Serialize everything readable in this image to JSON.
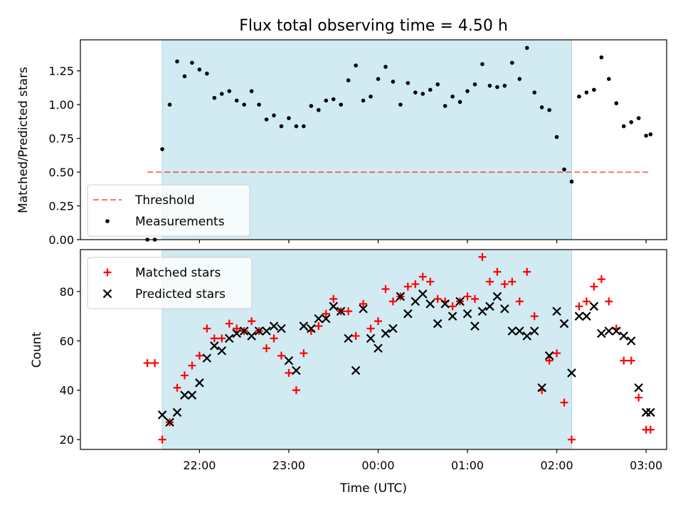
{
  "title": "Flux total observing time = 4.50 h",
  "xlabel": "Time (UTC)",
  "colors": {
    "shade": "#add8e6",
    "threshold": "#ff0000",
    "matched": "#ff0000",
    "predicted": "#000000",
    "measurement": "#000000"
  },
  "chart_data": [
    {
      "type": "scatter",
      "panel": "top",
      "ylabel": "Matched/Predicted stars",
      "ylim": [
        0,
        1.48
      ],
      "yticks": [
        "0.00",
        "0.25",
        "0.50",
        "0.75",
        "1.00",
        "1.25"
      ],
      "yticks_values": [
        0,
        0.25,
        0.5,
        0.75,
        1.0,
        1.25
      ],
      "shaded_interval": [
        "21:35",
        "02:10"
      ],
      "threshold": {
        "name": "Threshold",
        "y": 0.5,
        "x_range": [
          "21:25",
          "03:03"
        ]
      },
      "legend": {
        "position": "lower-left",
        "entries": [
          "Threshold",
          "Measurements"
        ]
      },
      "series": [
        {
          "name": "Measurements",
          "x": [
            "21:25",
            "21:30",
            "21:35",
            "21:40",
            "21:45",
            "21:50",
            "21:55",
            "22:00",
            "22:05",
            "22:10",
            "22:15",
            "22:20",
            "22:25",
            "22:30",
            "22:35",
            "22:40",
            "22:45",
            "22:50",
            "22:55",
            "23:00",
            "23:05",
            "23:10",
            "23:15",
            "23:20",
            "23:25",
            "23:30",
            "23:35",
            "23:40",
            "23:45",
            "23:50",
            "23:55",
            "00:00",
            "00:05",
            "00:10",
            "00:15",
            "00:20",
            "00:25",
            "00:30",
            "00:35",
            "00:40",
            "00:45",
            "00:50",
            "00:55",
            "01:00",
            "01:05",
            "01:10",
            "01:15",
            "01:20",
            "01:25",
            "01:30",
            "01:35",
            "01:40",
            "01:45",
            "01:50",
            "01:55",
            "02:00",
            "02:05",
            "02:10",
            "02:15",
            "02:20",
            "02:25",
            "02:30",
            "02:35",
            "02:40",
            "02:45",
            "02:50",
            "02:55",
            "03:00",
            "03:03"
          ],
          "y": [
            0.0,
            0.0,
            0.67,
            1.0,
            1.32,
            1.21,
            1.31,
            1.26,
            1.23,
            1.05,
            1.08,
            1.1,
            1.03,
            1.0,
            1.1,
            1.0,
            0.89,
            0.92,
            0.84,
            0.9,
            0.84,
            0.84,
            0.99,
            0.96,
            1.03,
            1.04,
            1.0,
            1.18,
            1.29,
            1.03,
            1.06,
            1.19,
            1.28,
            1.17,
            1.0,
            1.16,
            1.09,
            1.08,
            1.11,
            1.15,
            0.99,
            1.06,
            1.02,
            1.1,
            1.15,
            1.3,
            1.14,
            1.13,
            1.14,
            1.31,
            1.19,
            1.42,
            1.09,
            0.98,
            0.96,
            0.76,
            0.52,
            0.43,
            1.06,
            1.09,
            1.11,
            1.35,
            1.19,
            1.01,
            0.84,
            0.87,
            0.9,
            0.77,
            0.78
          ]
        }
      ]
    },
    {
      "type": "scatter",
      "panel": "bottom",
      "ylabel": "Count",
      "ylim": [
        16,
        97
      ],
      "yticks": [
        "20",
        "40",
        "60",
        "80"
      ],
      "yticks_values": [
        20,
        40,
        60,
        80
      ],
      "xticks": [
        "22:00",
        "23:00",
        "00:00",
        "01:00",
        "02:00",
        "03:00"
      ],
      "shaded_interval": [
        "21:35",
        "02:10"
      ],
      "legend": {
        "position": "upper-left",
        "entries": [
          "Matched stars",
          "Predicted stars"
        ]
      },
      "series": [
        {
          "name": "Matched stars",
          "marker": "plus",
          "x": [
            "21:25",
            "21:30",
            "21:35",
            "21:40",
            "21:45",
            "21:50",
            "21:55",
            "22:00",
            "22:05",
            "22:10",
            "22:15",
            "22:20",
            "22:25",
            "22:30",
            "22:35",
            "22:40",
            "22:45",
            "22:50",
            "22:55",
            "23:00",
            "23:05",
            "23:10",
            "23:15",
            "23:20",
            "23:25",
            "23:30",
            "23:35",
            "23:40",
            "23:45",
            "23:50",
            "23:55",
            "00:00",
            "00:05",
            "00:10",
            "00:15",
            "00:20",
            "00:25",
            "00:30",
            "00:35",
            "00:40",
            "00:45",
            "00:50",
            "00:55",
            "01:00",
            "01:05",
            "01:10",
            "01:15",
            "01:20",
            "01:25",
            "01:30",
            "01:35",
            "01:40",
            "01:45",
            "01:50",
            "01:55",
            "02:00",
            "02:05",
            "02:10",
            "02:15",
            "02:20",
            "02:25",
            "02:30",
            "02:35",
            "02:40",
            "02:45",
            "02:50",
            "02:55",
            "03:00",
            "03:03"
          ],
          "y": [
            51,
            51,
            20,
            27,
            41,
            46,
            50,
            54,
            65,
            61,
            61,
            67,
            65,
            64,
            68,
            64,
            57,
            61,
            54,
            47,
            40,
            55,
            64,
            66,
            71,
            77,
            72,
            72,
            62,
            75,
            65,
            68,
            81,
            76,
            78,
            82,
            83,
            86,
            84,
            77,
            76,
            74,
            76,
            78,
            77,
            94,
            84,
            88,
            83,
            84,
            76,
            88,
            70,
            40,
            52,
            55,
            35,
            20,
            74,
            76,
            82,
            85,
            76,
            65,
            52,
            52,
            37,
            24,
            24
          ]
        },
        {
          "name": "Predicted stars",
          "marker": "x",
          "x": [
            "21:35",
            "21:40",
            "21:45",
            "21:50",
            "21:55",
            "22:00",
            "22:05",
            "22:10",
            "22:15",
            "22:20",
            "22:25",
            "22:30",
            "22:35",
            "22:40",
            "22:45",
            "22:50",
            "22:55",
            "23:00",
            "23:05",
            "23:10",
            "23:15",
            "23:20",
            "23:25",
            "23:30",
            "23:35",
            "23:40",
            "23:45",
            "23:50",
            "23:55",
            "00:00",
            "00:05",
            "00:10",
            "00:15",
            "00:20",
            "00:25",
            "00:30",
            "00:35",
            "00:40",
            "00:45",
            "00:50",
            "00:55",
            "01:00",
            "01:05",
            "01:10",
            "01:15",
            "01:20",
            "01:25",
            "01:30",
            "01:35",
            "01:40",
            "01:45",
            "01:50",
            "01:55",
            "02:00",
            "02:05",
            "02:10",
            "02:15",
            "02:20",
            "02:25",
            "02:30",
            "02:35",
            "02:40",
            "02:45",
            "02:50",
            "02:55",
            "03:00",
            "03:03"
          ],
          "y": [
            30,
            27,
            31,
            38,
            38,
            43,
            53,
            58,
            56,
            61,
            63,
            64,
            62,
            64,
            64,
            66,
            65,
            52,
            48,
            66,
            65,
            69,
            69,
            74,
            72,
            61,
            48,
            73,
            61,
            57,
            63,
            65,
            78,
            71,
            76,
            79,
            75,
            67,
            75,
            70,
            76,
            71,
            66,
            72,
            74,
            78,
            73,
            64,
            64,
            62,
            64,
            41,
            54,
            72,
            67,
            47,
            70,
            70,
            74,
            63,
            64,
            64,
            62,
            60,
            41,
            31,
            31
          ]
        }
      ]
    }
  ]
}
